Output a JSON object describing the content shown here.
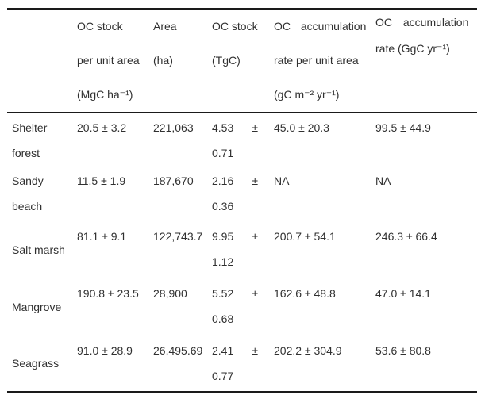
{
  "page": {
    "background_color": "#ffffff",
    "text_color": "#303030",
    "rule_color": "#1a1a1a"
  },
  "table": {
    "headers": [
      {
        "id": "habitat",
        "lines": []
      },
      {
        "id": "oc_stock_per_unit_area",
        "lines": [
          "OC stock",
          "per unit area",
          "(MgC ha⁻¹)"
        ]
      },
      {
        "id": "area",
        "lines": [
          "Area",
          "(ha)"
        ]
      },
      {
        "id": "oc_stock_tgc",
        "lines": [
          "OC stock",
          "(TgC)"
        ]
      },
      {
        "id": "oc_accumulation_rate_per_unit_area",
        "lines": [
          "OC accumulation",
          "rate per unit area",
          "(gC m⁻² yr⁻¹)"
        ]
      },
      {
        "id": "oc_accumulation_rate",
        "lines": [
          "OC accumulation",
          "rate (GgC yr⁻¹)"
        ]
      }
    ],
    "rows": [
      {
        "habitat_lines": [
          "Shelter",
          "forest"
        ],
        "oc_stock_per_unit_area": "20.5 ± 3.2",
        "area": "221,063",
        "oc_stock_tgc": {
          "value": "4.53",
          "plus_minus": "±",
          "uncertainty": "0.71"
        },
        "oc_accumulation_rate_per_unit_area": "45.0 ± 20.3",
        "oc_accumulation_rate": "99.5 ± 44.9"
      },
      {
        "habitat_lines": [
          "Sandy",
          "beach"
        ],
        "oc_stock_per_unit_area": "11.5 ± 1.9",
        "area": "187,670",
        "oc_stock_tgc": {
          "value": "2.16",
          "plus_minus": "±",
          "uncertainty": "0.36"
        },
        "oc_accumulation_rate_per_unit_area": "NA",
        "oc_accumulation_rate": "NA"
      },
      {
        "habitat_lines": [
          "Salt marsh"
        ],
        "oc_stock_per_unit_area": "81.1 ± 9.1",
        "area": "122,743.7",
        "oc_stock_tgc": {
          "value": "9.95",
          "plus_minus": "±",
          "uncertainty": "1.12"
        },
        "oc_accumulation_rate_per_unit_area": "200.7 ± 54.1",
        "oc_accumulation_rate": "246.3 ± 66.4"
      },
      {
        "habitat_lines": [
          "Mangrove"
        ],
        "oc_stock_per_unit_area": "190.8 ± 23.5",
        "area": "28,900",
        "oc_stock_tgc": {
          "value": "5.52",
          "plus_minus": "±",
          "uncertainty": "0.68"
        },
        "oc_accumulation_rate_per_unit_area": "162.6 ± 48.8",
        "oc_accumulation_rate": "47.0 ± 14.1"
      },
      {
        "habitat_lines": [
          "Seagrass"
        ],
        "oc_stock_per_unit_area": "91.0 ± 28.9",
        "area": "26,495.69",
        "oc_stock_tgc": {
          "value": "2.41",
          "plus_minus": "±",
          "uncertainty": "0.77"
        },
        "oc_accumulation_rate_per_unit_area": "202.2 ± 304.9",
        "oc_accumulation_rate": "53.6 ± 80.8"
      }
    ]
  }
}
